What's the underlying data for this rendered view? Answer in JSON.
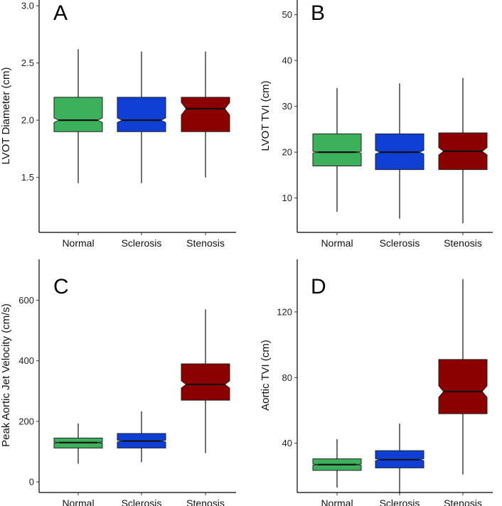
{
  "chart_data": [
    {
      "type": "boxplot",
      "panel_letter": "A",
      "ylabel": "LVOT Diameter (cm)",
      "xlabel": "",
      "categories": [
        "Normal",
        "Sclerosis",
        "Stenosis"
      ],
      "ylim": [
        1.02,
        3.05
      ],
      "yticks": [
        1.5,
        2.0,
        2.5,
        3.0
      ],
      "ytick_labels": [
        "1.5",
        "2.0",
        "2.5",
        "3.0"
      ],
      "notch_halfwidth": 0.2,
      "boxes": [
        {
          "name": "Normal",
          "color": "#3cb05a",
          "min": 1.45,
          "q1": 1.9,
          "median": 2.0,
          "q3": 2.2,
          "max": 2.62,
          "notch": 0.02
        },
        {
          "name": "Sclerosis",
          "color": "#0f3fd4",
          "min": 1.45,
          "q1": 1.9,
          "median": 2.0,
          "q3": 2.2,
          "max": 2.6,
          "notch": 0.02
        },
        {
          "name": "Stenosis",
          "color": "#8b0000",
          "min": 1.5,
          "q1": 1.9,
          "median": 2.1,
          "q3": 2.2,
          "max": 2.6,
          "notch": 0.055
        }
      ]
    },
    {
      "type": "boxplot",
      "panel_letter": "B",
      "ylabel": "LVOT TVI (cm)",
      "xlabel": "",
      "categories": [
        "Normal",
        "Sclerosis",
        "Stenosis"
      ],
      "ylim": [
        2.5,
        53.2
      ],
      "yticks": [
        10,
        20,
        30,
        40,
        50
      ],
      "ytick_labels": [
        "10",
        "20",
        "30",
        "40",
        "50"
      ],
      "notch_halfwidth": 0.2,
      "boxes": [
        {
          "name": "Normal",
          "color": "#3cb05a",
          "min": 7,
          "q1": 17,
          "median": 20,
          "q3": 24,
          "max": 34,
          "notch": 0.2
        },
        {
          "name": "Sclerosis",
          "color": "#0f3fd4",
          "min": 5.5,
          "q1": 16.2,
          "median": 20,
          "q3": 24,
          "max": 35,
          "notch": 0.4
        },
        {
          "name": "Stenosis",
          "color": "#8b0000",
          "min": 4.5,
          "q1": 16.2,
          "median": 20.2,
          "q3": 24.2,
          "max": 36.2,
          "notch": 0.8
        }
      ]
    },
    {
      "type": "boxplot",
      "panel_letter": "C",
      "ylabel": "Peak Aortic Jet Velocity (cm/s)",
      "xlabel": "",
      "categories": [
        "Normal",
        "Sclerosis",
        "Stenosis"
      ],
      "ylim": [
        -35,
        735
      ],
      "yticks": [
        0,
        200,
        400,
        600
      ],
      "ytick_labels": [
        "0",
        "200",
        "400",
        "600"
      ],
      "notch_halfwidth": 0.2,
      "boxes": [
        {
          "name": "Normal",
          "color": "#3cb05a",
          "min": 60,
          "q1": 112,
          "median": 130,
          "q3": 145,
          "max": 193,
          "notch": 2
        },
        {
          "name": "Sclerosis",
          "color": "#0f3fd4",
          "min": 65,
          "q1": 112,
          "median": 135,
          "q3": 160,
          "max": 233,
          "notch": 3
        },
        {
          "name": "Stenosis",
          "color": "#8b0000",
          "min": 95,
          "q1": 270,
          "median": 322,
          "q3": 390,
          "max": 570,
          "notch": 12
        }
      ]
    },
    {
      "type": "boxplot",
      "panel_letter": "D",
      "ylabel": "Aortic TVI (cm)",
      "xlabel": "",
      "categories": [
        "Normal",
        "Sclerosis",
        "Stenosis"
      ],
      "ylim": [
        10,
        152
      ],
      "yticks": [
        40,
        80,
        120
      ],
      "ytick_labels": [
        "40",
        "80",
        "120"
      ],
      "notch_halfwidth": 0.2,
      "boxes": [
        {
          "name": "Normal",
          "color": "#3cb05a",
          "min": 13,
          "q1": 23.5,
          "median": 27,
          "q3": 30.5,
          "max": 42.5,
          "notch": 0.4
        },
        {
          "name": "Sclerosis",
          "color": "#0f3fd4",
          "min": 9.5,
          "q1": 25,
          "median": 30,
          "q3": 35.5,
          "max": 52,
          "notch": 0.6
        },
        {
          "name": "Stenosis",
          "color": "#8b0000",
          "min": 21,
          "q1": 58,
          "median": 71.5,
          "q3": 91,
          "max": 140,
          "notch": 3.5
        }
      ]
    }
  ]
}
